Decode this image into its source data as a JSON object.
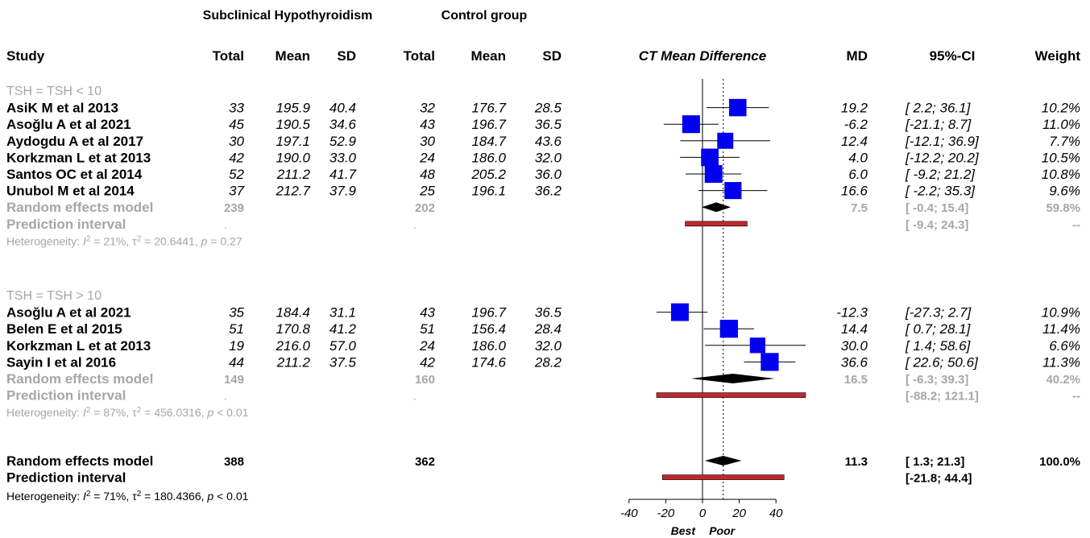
{
  "group_headers": {
    "experimental": "Subclinical Hypothyroidism",
    "control": "Control group"
  },
  "columns": {
    "study": "Study",
    "e_total": "Total",
    "e_mean": "Mean",
    "e_sd": "SD",
    "c_total": "Total",
    "c_mean": "Mean",
    "c_sd": "SD",
    "plot": "CT Mean Difference",
    "md": "MD",
    "ci": "95%-CI",
    "weight": "Weight"
  },
  "colors": {
    "box": "#0000ee",
    "diamond": "#000000",
    "prediction": "#c0272d",
    "grey_text": "#a6a6a6",
    "ci_line": "#000000"
  },
  "chart_data": {
    "type": "forest",
    "xlim": [
      -40,
      40
    ],
    "x_ticks": [
      -40,
      -20,
      0,
      20,
      40
    ],
    "reference_line": 0,
    "overall_effect_line": 11.3,
    "x_labels": {
      "left": "Best",
      "right": "Poor"
    },
    "subgroups": [
      {
        "label": "TSH = TSH < 10",
        "studies": [
          {
            "study": "AsiK M et al 2013",
            "e_total": "33",
            "e_mean": "195.9",
            "e_sd": "40.4",
            "c_total": "32",
            "c_mean": "176.7",
            "c_sd": "28.5",
            "md": 19.2,
            "md_text": "19.2",
            "lower": 2.2,
            "upper": 36.1,
            "ci_text": "[  2.2;  36.1]",
            "weight": 10.2,
            "weight_text": "10.2%"
          },
          {
            "study": "Asoğlu A et al 2021",
            "e_total": "45",
            "e_mean": "190.5",
            "e_sd": "34.6",
            "c_total": "43",
            "c_mean": "196.7",
            "c_sd": "36.5",
            "md": -6.2,
            "md_text": "-6.2",
            "lower": -21.1,
            "upper": 8.7,
            "ci_text": "[-21.1;   8.7]",
            "weight": 11.0,
            "weight_text": "11.0%"
          },
          {
            "study": "Aydogdu A et al 2017",
            "e_total": "30",
            "e_mean": "197.1",
            "e_sd": "52.9",
            "c_total": "30",
            "c_mean": "184.7",
            "c_sd": "43.6",
            "md": 12.4,
            "md_text": "12.4",
            "lower": -12.1,
            "upper": 36.9,
            "ci_text": "[-12.1;  36.9]",
            "weight": 7.7,
            "weight_text": "7.7%"
          },
          {
            "study": "Korkzman L et at 2013",
            "e_total": "42",
            "e_mean": "190.0",
            "e_sd": "33.0",
            "c_total": "24",
            "c_mean": "186.0",
            "c_sd": "32.0",
            "md": 4.0,
            "md_text": "4.0",
            "lower": -12.2,
            "upper": 20.2,
            "ci_text": "[-12.2;  20.2]",
            "weight": 10.5,
            "weight_text": "10.5%"
          },
          {
            "study": "Santos OC et al 2014",
            "e_total": "52",
            "e_mean": "211.2",
            "e_sd": "41.7",
            "c_total": "48",
            "c_mean": "205.2",
            "c_sd": "36.0",
            "md": 6.0,
            "md_text": "6.0",
            "lower": -9.2,
            "upper": 21.2,
            "ci_text": "[ -9.2;  21.2]",
            "weight": 10.8,
            "weight_text": "10.8%"
          },
          {
            "study": "Unubol M et al 2014",
            "e_total": "37",
            "e_mean": "212.7",
            "e_sd": "37.9",
            "c_total": "25",
            "c_mean": "196.1",
            "c_sd": "36.2",
            "md": 16.6,
            "md_text": "16.6",
            "lower": -2.2,
            "upper": 35.3,
            "ci_text": "[ -2.2;  35.3]",
            "weight": 9.6,
            "weight_text": "9.6%"
          }
        ],
        "random_effects": {
          "label": "Random effects model",
          "e_total": "239",
          "c_total": "202",
          "md": 7.5,
          "md_text": "7.5",
          "lower": -0.4,
          "upper": 15.4,
          "ci_text": "[ -0.4;  15.4]",
          "weight_text": "59.8%"
        },
        "prediction": {
          "label": "Prediction interval",
          "e_total": ".",
          "c_total": ".",
          "lower": -9.4,
          "upper": 24.3,
          "ci_text": "[ -9.4;  24.3]",
          "weight_text": "--"
        },
        "heterogeneity": {
          "prefix": "Heterogeneity: ",
          "i2_symbol": "I",
          "i2_value": " = 21%, ",
          "tau_symbol": "τ",
          "tau_value": " = 20.6441, ",
          "p_symbol": "p",
          "p_value": " = 0.27"
        }
      },
      {
        "label": "TSH = TSH > 10",
        "studies": [
          {
            "study": "Asoğlu A et al 2021",
            "e_total": "35",
            "e_mean": "184.4",
            "e_sd": "31.1",
            "c_total": "43",
            "c_mean": "196.7",
            "c_sd": "36.5",
            "md": -12.3,
            "md_text": "-12.3",
            "lower": -27.3,
            "upper": 2.7,
            "ci_text": "[-27.3;   2.7]",
            "weight": 10.9,
            "weight_text": "10.9%"
          },
          {
            "study": "Belen E et al  2015",
            "e_total": "51",
            "e_mean": "170.8",
            "e_sd": "41.2",
            "c_total": "51",
            "c_mean": "156.4",
            "c_sd": "28.4",
            "md": 14.4,
            "md_text": "14.4",
            "lower": 0.7,
            "upper": 28.1,
            "ci_text": "[  0.7;  28.1]",
            "weight": 11.4,
            "weight_text": "11.4%"
          },
          {
            "study": "Korkzman L et at 2013",
            "e_total": "19",
            "e_mean": "216.0",
            "e_sd": "57.0",
            "c_total": "24",
            "c_mean": "186.0",
            "c_sd": "32.0",
            "md": 30.0,
            "md_text": "30.0",
            "lower": 1.4,
            "upper": 58.6,
            "ci_text": "[  1.4;  58.6]",
            "weight": 6.6,
            "weight_text": "6.6%"
          },
          {
            "study": "Sayin I et al 2016",
            "e_total": "44",
            "e_mean": "211.2",
            "e_sd": "37.5",
            "c_total": "42",
            "c_mean": "174.6",
            "c_sd": "28.2",
            "md": 36.6,
            "md_text": "36.6",
            "lower": 22.6,
            "upper": 50.6,
            "ci_text": "[ 22.6;  50.6]",
            "weight": 11.3,
            "weight_text": "11.3%"
          }
        ],
        "random_effects": {
          "label": "Random effects model",
          "e_total": "149",
          "c_total": "160",
          "md": 16.5,
          "md_text": "16.5",
          "lower": -6.3,
          "upper": 39.3,
          "ci_text": "[ -6.3;  39.3]",
          "weight_text": "40.2%"
        },
        "prediction": {
          "label": "Prediction interval",
          "e_total": ".",
          "c_total": ".",
          "lower": -88.2,
          "upper": 121.1,
          "ci_text": "[-88.2; 121.1]",
          "weight_text": "--"
        },
        "heterogeneity": {
          "prefix": "Heterogeneity: ",
          "i2_symbol": "I",
          "i2_value": " = 87%, ",
          "tau_symbol": "τ",
          "tau_value": " = 456.0316, ",
          "p_symbol": "p",
          "p_value": " < 0.01"
        }
      }
    ],
    "overall": {
      "random_effects": {
        "label": "Random effects model",
        "e_total": "388",
        "c_total": "362",
        "md": 11.3,
        "md_text": "11.3",
        "lower": 1.3,
        "upper": 21.3,
        "ci_text": "[  1.3;  21.3]",
        "weight_text": "100.0%"
      },
      "prediction": {
        "label": "Prediction interval",
        "lower": -21.8,
        "upper": 44.4,
        "ci_text": "[-21.8;  44.4]"
      },
      "heterogeneity": {
        "prefix": "Heterogeneity: ",
        "i2_symbol": "I",
        "i2_value": " = 71%, ",
        "tau_symbol": "τ",
        "tau_value": " = 180.4366, ",
        "p_symbol": "p",
        "p_value": " < 0.01"
      }
    }
  }
}
